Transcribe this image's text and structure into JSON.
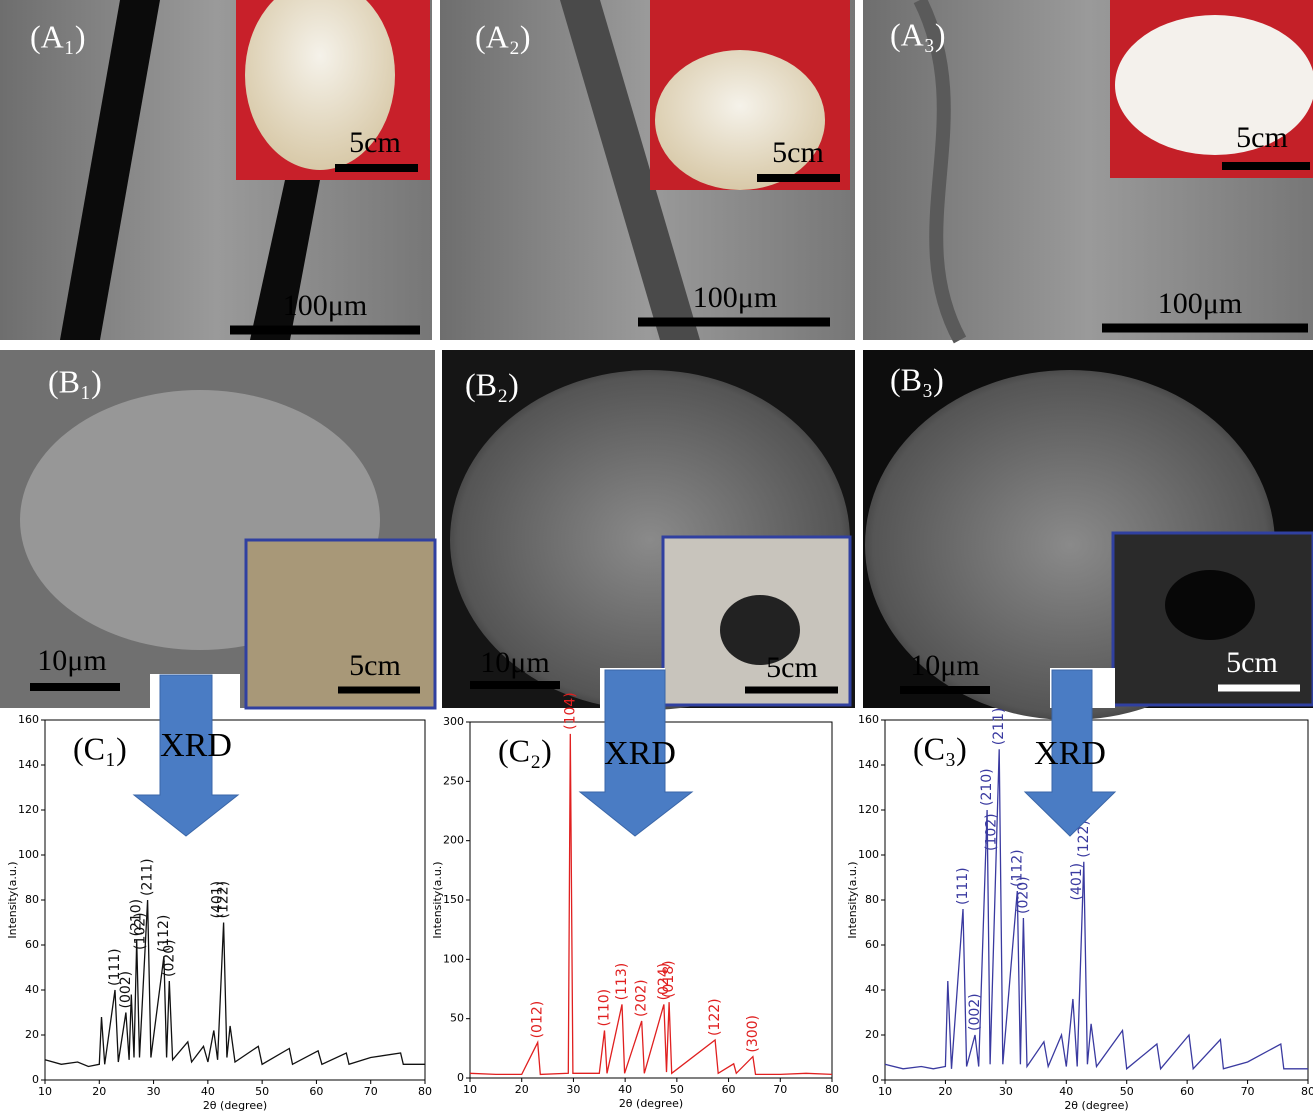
{
  "sem_panels": [
    {
      "label": "(A₁)",
      "scale_bar": "100μm",
      "inset_scale_bar": "5cm"
    },
    {
      "label": "(A₂)",
      "scale_bar": "100μm",
      "inset_scale_bar": "5cm"
    },
    {
      "label": "(A₃)",
      "scale_bar": "100μm",
      "inset_scale_bar": "5cm"
    },
    {
      "label": "(B₁)",
      "scale_bar": "10μm",
      "inset_scale_bar": "5cm"
    },
    {
      "label": "(B₂)",
      "scale_bar": "10μm",
      "inset_scale_bar": "5cm"
    },
    {
      "label": "(B₃)",
      "scale_bar": "10μm",
      "inset_scale_bar": "5cm"
    }
  ],
  "arrow_label": "XRD",
  "chart_data": [
    {
      "type": "line",
      "title": "(C₁)",
      "xlabel": "2θ (degree)",
      "ylabel": "Intensity(a.u.)",
      "color": "#111111",
      "xlim": [
        10,
        80
      ],
      "xticks": [
        10,
        20,
        30,
        40,
        50,
        60,
        70,
        80
      ],
      "ylim": [
        0,
        160
      ],
      "yticks": [
        0,
        20,
        40,
        60,
        80,
        100,
        120,
        140,
        160
      ],
      "x": [
        10,
        13,
        16,
        18,
        20,
        20.4,
        21,
        22.9,
        23.5,
        24.9,
        25.5,
        25.9,
        26.4,
        26.9,
        27.4,
        28.9,
        29.5,
        31.9,
        32.4,
        32.9,
        33.5,
        36.3,
        37,
        39.2,
        40,
        41.1,
        41.8,
        42.9,
        43.5,
        44.1,
        45,
        49.3,
        50,
        55,
        55.6,
        60.3,
        61,
        65.5,
        66,
        70,
        75.5,
        76,
        80
      ],
      "values": [
        9,
        7,
        8,
        6,
        7,
        28,
        7,
        40,
        8,
        30,
        9,
        38,
        10,
        62,
        10,
        80,
        10,
        55,
        10,
        44,
        9,
        17,
        8,
        15,
        8,
        22,
        9,
        70,
        10,
        24,
        8,
        15,
        7,
        14,
        7,
        13,
        7,
        12,
        7,
        10,
        12,
        7,
        7
      ],
      "peaks": [
        {
          "label": "(111)",
          "x": 22.9,
          "y": 40
        },
        {
          "label": "(002)",
          "x": 24.9,
          "y": 30
        },
        {
          "label": "(210)",
          "x": 26.9,
          "y": 62
        },
        {
          "label": "(102)",
          "x": 27.6,
          "y": 56
        },
        {
          "label": "(211)",
          "x": 28.9,
          "y": 80
        },
        {
          "label": "(112)",
          "x": 31.9,
          "y": 55
        },
        {
          "label": "(020)",
          "x": 32.9,
          "y": 44
        },
        {
          "label": "(401)",
          "x": 41.8,
          "y": 70
        },
        {
          "label": "(122)",
          "x": 42.9,
          "y": 70
        }
      ]
    },
    {
      "type": "line",
      "title": "(C₂)",
      "xlabel": "2θ (degree)",
      "ylabel": "Intensity(a.u.)",
      "color": "#e02020",
      "xlim": [
        10,
        80
      ],
      "xticks": [
        10,
        20,
        30,
        40,
        50,
        60,
        70,
        80
      ],
      "ylim": [
        0,
        300
      ],
      "yticks": [
        0,
        50,
        100,
        150,
        200,
        250,
        300
      ],
      "x": [
        10,
        15,
        20,
        23.1,
        23.6,
        29,
        29.4,
        29.9,
        35,
        36,
        36.5,
        39.4,
        39.9,
        43.2,
        43.7,
        47.5,
        48,
        48.5,
        49,
        57.4,
        58,
        61,
        61.5,
        64.7,
        65.2,
        70,
        75,
        80
      ],
      "values": [
        4,
        3,
        3,
        30,
        3,
        4,
        290,
        4,
        4,
        40,
        4,
        62,
        4,
        48,
        4,
        62,
        5,
        64,
        4,
        32,
        4,
        12,
        4,
        18,
        3,
        3,
        4,
        3
      ],
      "peaks": [
        {
          "label": "(012)",
          "x": 23.1,
          "y": 30
        },
        {
          "label": "(104)",
          "x": 29.4,
          "y": 290
        },
        {
          "label": "(110)",
          "x": 36,
          "y": 40
        },
        {
          "label": "(113)",
          "x": 39.4,
          "y": 62
        },
        {
          "label": "(202)",
          "x": 43.2,
          "y": 48
        },
        {
          "label": "(024)",
          "x": 47.5,
          "y": 62
        },
        {
          "label": "(018)",
          "x": 48.5,
          "y": 64
        },
        {
          "label": "(122)",
          "x": 57.4,
          "y": 32
        },
        {
          "label": "(300)",
          "x": 64.7,
          "y": 18
        }
      ]
    },
    {
      "type": "line",
      "title": "(C₃)",
      "xlabel": "2θ (degree)",
      "ylabel": "Intensity(a.u.)",
      "color": "#3a3aa0",
      "xlim": [
        10,
        80
      ],
      "xticks": [
        10,
        20,
        30,
        40,
        50,
        60,
        70,
        80
      ],
      "ylim": [
        0,
        160
      ],
      "yticks": [
        0,
        20,
        40,
        60,
        80,
        100,
        120,
        140,
        160
      ],
      "x": [
        10,
        13,
        16,
        18,
        20,
        20.4,
        21,
        22.9,
        23.5,
        24.9,
        25.5,
        26.9,
        27.4,
        28.9,
        29.5,
        31.9,
        32.4,
        32.9,
        33.5,
        36.3,
        37,
        39.2,
        40,
        41.1,
        41.8,
        42.9,
        43.5,
        44.1,
        45,
        49.3,
        50,
        55,
        55.6,
        60.3,
        61,
        65.5,
        66,
        70,
        75.5,
        76,
        80
      ],
      "values": [
        7,
        5,
        6,
        5,
        6,
        44,
        5,
        76,
        6,
        20,
        6,
        120,
        7,
        147,
        7,
        84,
        7,
        72,
        6,
        17,
        6,
        20,
        6,
        36,
        6,
        97,
        7,
        25,
        6,
        22,
        5,
        16,
        5,
        20,
        5,
        18,
        5,
        8,
        16,
        5,
        5
      ],
      "peaks": [
        {
          "label": "(111)",
          "x": 22.9,
          "y": 76
        },
        {
          "label": "(002)",
          "x": 24.9,
          "y": 20
        },
        {
          "label": "(210)",
          "x": 26.9,
          "y": 120
        },
        {
          "label": "(102)",
          "x": 27.6,
          "y": 100
        },
        {
          "label": "(211)",
          "x": 28.9,
          "y": 147
        },
        {
          "label": "(112)",
          "x": 31.9,
          "y": 84
        },
        {
          "label": "(020)",
          "x": 32.9,
          "y": 72
        },
        {
          "label": "(401)",
          "x": 41.8,
          "y": 78
        },
        {
          "label": "(122)",
          "x": 42.9,
          "y": 97
        }
      ]
    }
  ]
}
